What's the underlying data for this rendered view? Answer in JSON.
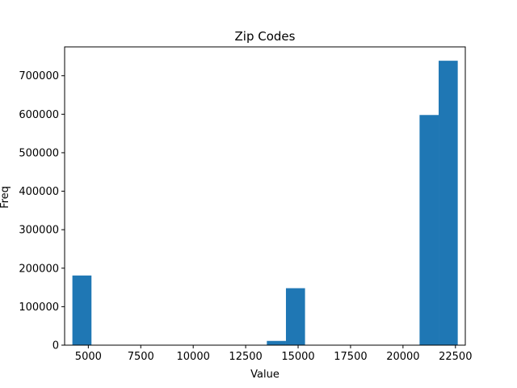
{
  "chart_data": {
    "type": "bar",
    "title": "Zip Codes",
    "xlabel": "Value",
    "ylabel": "Freq",
    "xlim": [
      3870,
      22970
    ],
    "ylim": [
      0,
      775000
    ],
    "xticks": [
      5000,
      7500,
      10000,
      12500,
      15000,
      17500,
      20000,
      22500
    ],
    "xtick_labels": [
      "5000",
      "7500",
      "10000",
      "12500",
      "15000",
      "17500",
      "20000",
      "22500"
    ],
    "yticks": [
      0,
      100000,
      200000,
      300000,
      400000,
      500000,
      600000,
      700000
    ],
    "ytick_labels": [
      "0",
      "100000",
      "200000",
      "300000",
      "400000",
      "500000",
      "600000",
      "700000"
    ],
    "bins": [
      {
        "x0": 4240,
        "x1": 5150,
        "value": 181000
      },
      {
        "x0": 13510,
        "x1": 14420,
        "value": 11000
      },
      {
        "x0": 14420,
        "x1": 15330,
        "value": 148000
      },
      {
        "x0": 20790,
        "x1": 21700,
        "value": 598000
      },
      {
        "x0": 21700,
        "x1": 22610,
        "value": 739000
      }
    ],
    "bar_color": "#1f77b4",
    "grid": false,
    "legend": "none"
  }
}
